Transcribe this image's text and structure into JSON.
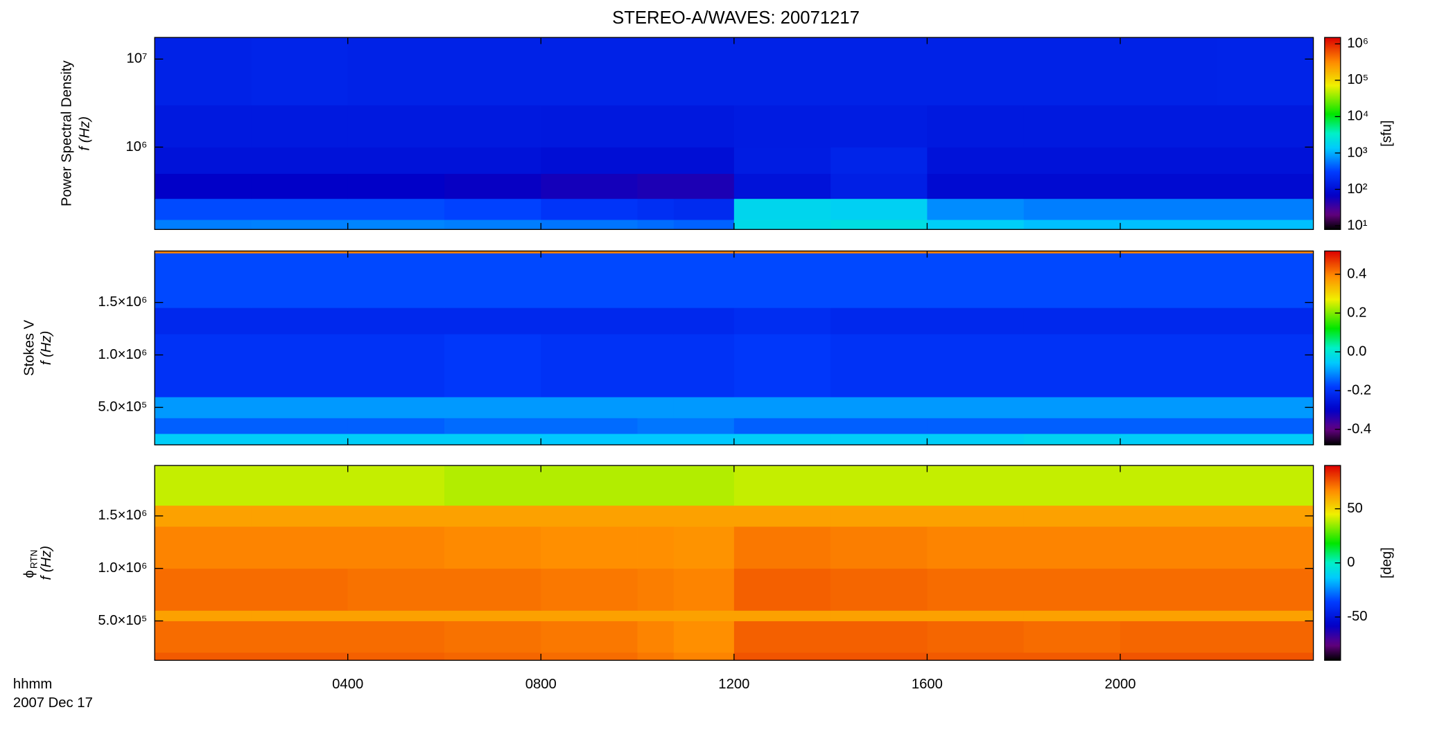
{
  "title": "STEREO-A/WAVES: 20071217",
  "xlabel_lines": [
    "hhmm",
    "2007 Dec 17"
  ],
  "chart_data": [
    {
      "type": "heatmap",
      "ylabel": [
        "Power Spectral Density",
        "f (Hz)"
      ],
      "ylog": true,
      "xlim": [
        0,
        24
      ],
      "xticks": [
        4,
        8,
        12,
        16,
        20
      ],
      "ylim": [
        116000,
        17600000
      ],
      "yticks": [
        {
          "value": 1000000,
          "label": "10⁶"
        },
        {
          "value": 10000000,
          "label": "10⁷"
        }
      ],
      "x_edges": [
        0,
        2,
        4,
        6,
        8,
        10,
        10.75,
        12,
        14,
        16,
        18,
        20,
        22,
        24
      ],
      "y_edges": [
        116000,
        150000,
        260000,
        500000,
        1000000,
        3000000,
        17600000
      ],
      "values": [
        [
          600,
          620,
          650,
          600,
          550,
          500,
          450,
          2000,
          2200,
          1500,
          1200,
          1200,
          1200
        ],
        [
          350,
          350,
          350,
          320,
          250,
          220,
          200,
          1800,
          1600,
          700,
          600,
          600,
          600
        ],
        [
          70,
          70,
          70,
          65,
          55,
          50,
          50,
          110,
          150,
          90,
          90,
          90,
          90
        ],
        [
          110,
          110,
          110,
          110,
          100,
          100,
          100,
          140,
          170,
          110,
          110,
          110,
          110
        ],
        [
          130,
          130,
          130,
          130,
          125,
          125,
          125,
          135,
          140,
          130,
          130,
          130,
          130
        ],
        [
          160,
          170,
          160,
          160,
          160,
          160,
          160,
          160,
          160,
          160,
          160,
          160,
          165
        ]
      ],
      "colormap": "rainbow",
      "clog": true,
      "clim": [
        7.9,
        1500000
      ],
      "cticks": [
        {
          "value": 1000000,
          "label": "10⁶"
        },
        {
          "value": 100000,
          "label": "10⁵"
        },
        {
          "value": 10000,
          "label": "10⁴"
        },
        {
          "value": 1000,
          "label": "10³"
        },
        {
          "value": 100,
          "label": "10²"
        },
        {
          "value": 10,
          "label": "10¹"
        }
      ],
      "clabel": "[sfu]"
    },
    {
      "type": "heatmap",
      "ylabel": [
        "Stokes V",
        "f (Hz)"
      ],
      "ylog": false,
      "xlim": [
        0,
        24
      ],
      "xticks": [
        4,
        8,
        12,
        16,
        20
      ],
      "ylim": [
        143000,
        1990000
      ],
      "yticks": [
        {
          "value": 1500000,
          "label": "1.5×10⁶"
        },
        {
          "value": 1000000,
          "label": "1.0×10⁶"
        },
        {
          "value": 500000,
          "label": "5.0×10⁵"
        }
      ],
      "x_edges": [
        0,
        2,
        4,
        6,
        8,
        10,
        10.75,
        12,
        14,
        16,
        18,
        20,
        22,
        24
      ],
      "y_edges": [
        143000,
        250000,
        400000,
        600000,
        1200000,
        1450000,
        1970000,
        1990000
      ],
      "values": [
        [
          -0.05,
          -0.05,
          -0.05,
          -0.05,
          -0.06,
          -0.06,
          -0.06,
          -0.05,
          -0.05,
          -0.05,
          -0.04,
          -0.05,
          -0.05
        ],
        [
          -0.15,
          -0.15,
          -0.15,
          -0.14,
          -0.14,
          -0.13,
          -0.13,
          -0.15,
          -0.15,
          -0.15,
          -0.15,
          -0.15,
          -0.15
        ],
        [
          -0.1,
          -0.1,
          -0.1,
          -0.1,
          -0.1,
          -0.1,
          -0.1,
          -0.1,
          -0.1,
          -0.1,
          -0.1,
          -0.1,
          -0.1
        ],
        [
          -0.2,
          -0.2,
          -0.2,
          -0.19,
          -0.2,
          -0.2,
          -0.2,
          -0.19,
          -0.2,
          -0.2,
          -0.2,
          -0.2,
          -0.2
        ],
        [
          -0.22,
          -0.22,
          -0.22,
          -0.22,
          -0.22,
          -0.22,
          -0.22,
          -0.21,
          -0.22,
          -0.22,
          -0.22,
          -0.22,
          -0.22
        ],
        [
          -0.17,
          -0.17,
          -0.17,
          -0.17,
          -0.17,
          -0.17,
          -0.17,
          -0.17,
          -0.17,
          -0.17,
          -0.17,
          -0.17,
          -0.17
        ],
        [
          0.4,
          0.4,
          0.4,
          0.4,
          0.4,
          0.4,
          0.4,
          0.4,
          0.4,
          0.4,
          0.4,
          0.4,
          0.4
        ]
      ],
      "colormap": "rainbow",
      "clog": false,
      "clim": [
        -0.48,
        0.52
      ],
      "cticks": [
        0.4,
        0.2,
        {
          "value": 0,
          "label": "0.0"
        },
        -0.2,
        -0.4
      ]
    },
    {
      "type": "heatmap",
      "ylabel": [
        "ϕ",
        "f (Hz)"
      ],
      "ylabel_sub": "RTN",
      "ylog": false,
      "xlim": [
        0,
        24
      ],
      "xticks": [
        {
          "value": 4,
          "label": "0400"
        },
        {
          "value": 8,
          "label": "0800"
        },
        {
          "value": 12,
          "label": "1200"
        },
        {
          "value": 16,
          "label": "1600"
        },
        {
          "value": 20,
          "label": "2000"
        }
      ],
      "ylim": [
        125000,
        1980000
      ],
      "yticks": [
        {
          "value": 1500000,
          "label": "1.5×10⁶"
        },
        {
          "value": 1000000,
          "label": "1.0×10⁶"
        },
        {
          "value": 500000,
          "label": "5.0×10⁵"
        }
      ],
      "x_edges": [
        0,
        2,
        4,
        6,
        8,
        10,
        10.75,
        12,
        14,
        16,
        18,
        20,
        22,
        24
      ],
      "y_edges": [
        125000,
        200000,
        500000,
        600000,
        1000000,
        1400000,
        1600000,
        1980000
      ],
      "values": [
        [
          75,
          75,
          74,
          73,
          72,
          70,
          68,
          76,
          76,
          75,
          75,
          76,
          76
        ],
        [
          72,
          72,
          72,
          71,
          70,
          68,
          66,
          74,
          74,
          73,
          72,
          73,
          73
        ],
        [
          62,
          62,
          62,
          62,
          62,
          62,
          62,
          62,
          62,
          62,
          62,
          62,
          62
        ],
        [
          72,
          72,
          71,
          71,
          70,
          69,
          68,
          74,
          73,
          72,
          72,
          72,
          72
        ],
        [
          68,
          68,
          68,
          67,
          66,
          66,
          65,
          70,
          69,
          68,
          68,
          68,
          68
        ],
        [
          62,
          62,
          62,
          62,
          62,
          62,
          62,
          62,
          62,
          62,
          62,
          62,
          62
        ],
        [
          40,
          40,
          40,
          38,
          38,
          38,
          38,
          40,
          40,
          40,
          40,
          40,
          40
        ]
      ],
      "colormap": "rainbow",
      "clog": false,
      "clim": [
        -90,
        90
      ],
      "cticks": [
        50,
        0,
        -50
      ],
      "clabel": "[deg]"
    }
  ]
}
